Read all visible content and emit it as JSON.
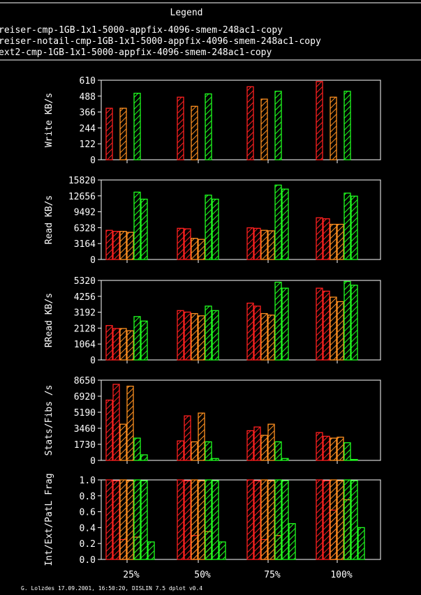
{
  "legend": {
    "title": "Legend",
    "entries": [
      {
        "label": "reiser-cmp-1GB-1x1-5000-appfix-4096-smem-248ac1-copy",
        "color": "#ff2020"
      },
      {
        "label": "reiser-notail-cmp-1GB-1x1-5000-appfix-4096-smem-248ac1-copy",
        "color": "#ff9020"
      },
      {
        "label": "ext2-cmp-1GB-1x1-5000-appfix-4096-smem-248ac1-copy",
        "color": "#20ff20"
      }
    ]
  },
  "footer": "G. Lolzdes 17.09.2001, 16:50:20, DISLIN 7.5 dplot v0.4",
  "chart_data": [
    {
      "type": "bar",
      "ylabel": "Write KB/s",
      "categories": [
        "25%",
        "50%",
        "75%",
        "100%"
      ],
      "ylim": [
        0,
        610
      ],
      "yticks": [
        0,
        122,
        244,
        366,
        488,
        610
      ],
      "series": [
        {
          "color": "#ff2020",
          "values": [
            [
              395
            ],
            [
              480
            ],
            [
              560
            ],
            [
              600
            ]
          ]
        },
        {
          "color": "#ff9020",
          "values": [
            [
              395
            ],
            [
              410
            ],
            [
              465
            ],
            [
              480
            ]
          ]
        },
        {
          "color": "#20ff20",
          "values": [
            [
              510
            ],
            [
              505
            ],
            [
              525
            ],
            [
              525
            ]
          ]
        }
      ]
    },
    {
      "type": "bar",
      "ylabel": "Read KB/s",
      "categories": [
        "25%",
        "50%",
        "75%",
        "100%"
      ],
      "ylim": [
        0,
        15820
      ],
      "yticks": [
        0,
        3164,
        6328,
        9492,
        12656,
        15820
      ],
      "series": [
        {
          "color": "#ff2020",
          "values": [
            [
              5800,
              5600
            ],
            [
              6200,
              6100
            ],
            [
              6300,
              6200
            ],
            [
              8300,
              8100
            ]
          ]
        },
        {
          "color": "#ff9020",
          "values": [
            [
              5600,
              5400
            ],
            [
              4200,
              4000
            ],
            [
              5800,
              5700
            ],
            [
              7000,
              7000
            ]
          ]
        },
        {
          "color": "#20ff20",
          "values": [
            [
              13400,
              12000
            ],
            [
              12800,
              12000
            ],
            [
              14800,
              14000
            ],
            [
              13200,
              12600
            ]
          ]
        }
      ]
    },
    {
      "type": "bar",
      "ylabel": "RRead KB/s",
      "categories": [
        "25%",
        "50%",
        "75%",
        "100%"
      ],
      "ylim": [
        0,
        5320
      ],
      "yticks": [
        0,
        1064,
        2128,
        3192,
        4256,
        5320
      ],
      "series": [
        {
          "color": "#ff2020",
          "values": [
            [
              2300,
              2100
            ],
            [
              3300,
              3200
            ],
            [
              3800,
              3600
            ],
            [
              4800,
              4600
            ]
          ]
        },
        {
          "color": "#ff9020",
          "values": [
            [
              2100,
              1950
            ],
            [
              3100,
              2950
            ],
            [
              3100,
              3000
            ],
            [
              4200,
              3900
            ]
          ]
        },
        {
          "color": "#20ff20",
          "values": [
            [
              2900,
              2600
            ],
            [
              3600,
              3300
            ],
            [
              5200,
              4800
            ],
            [
              5250,
              5000
            ]
          ]
        }
      ]
    },
    {
      "type": "bar",
      "ylabel": "Stats/Fibs /s",
      "categories": [
        "25%",
        "50%",
        "75%",
        "100%"
      ],
      "ylim": [
        0,
        8650
      ],
      "yticks": [
        0,
        1730,
        3460,
        5190,
        6920,
        8650
      ],
      "series": [
        {
          "color": "#ff2020",
          "values": [
            [
              6500,
              8200
            ],
            [
              2100,
              4800
            ],
            [
              3200,
              3600
            ],
            [
              3000,
              2600
            ]
          ]
        },
        {
          "color": "#ff9020",
          "values": [
            [
              3900,
              8000
            ],
            [
              2000,
              5100
            ],
            [
              2700,
              3900
            ],
            [
              2400,
              2500
            ]
          ]
        },
        {
          "color": "#20ff20",
          "values": [
            [
              2400,
              600
            ],
            [
              2000,
              200
            ],
            [
              2000,
              200
            ],
            [
              1900,
              100
            ]
          ]
        }
      ]
    },
    {
      "type": "bar",
      "ylabel": "Int/Ext/PatL Frag",
      "categories": [
        "25%",
        "50%",
        "75%",
        "100%"
      ],
      "ylim": [
        0,
        1.0
      ],
      "yticks": [
        "0.0",
        "0.2",
        "0.4",
        "0.6",
        "0.8",
        "1.0"
      ],
      "series": [
        {
          "color": "#ff2020",
          "values": [
            [
              1.0,
              0.99,
              0.25
            ],
            [
              1.0,
              0.99,
              0.3
            ],
            [
              1.0,
              0.99,
              0.25
            ],
            [
              1.0,
              0.99,
              0.62
            ]
          ]
        },
        {
          "color": "#ff9020",
          "values": [
            [
              1.0,
              0.99,
              0.28
            ],
            [
              1.0,
              0.99,
              0.35
            ],
            [
              1.0,
              0.99,
              0.3
            ],
            [
              1.0,
              0.99,
              0.75
            ]
          ]
        },
        {
          "color": "#20ff20",
          "values": [
            [
              1.0,
              0.99,
              0.22
            ],
            [
              1.0,
              0.99,
              0.22
            ],
            [
              1.0,
              0.99,
              0.45
            ],
            [
              1.0,
              0.99,
              0.4
            ]
          ]
        }
      ]
    }
  ]
}
